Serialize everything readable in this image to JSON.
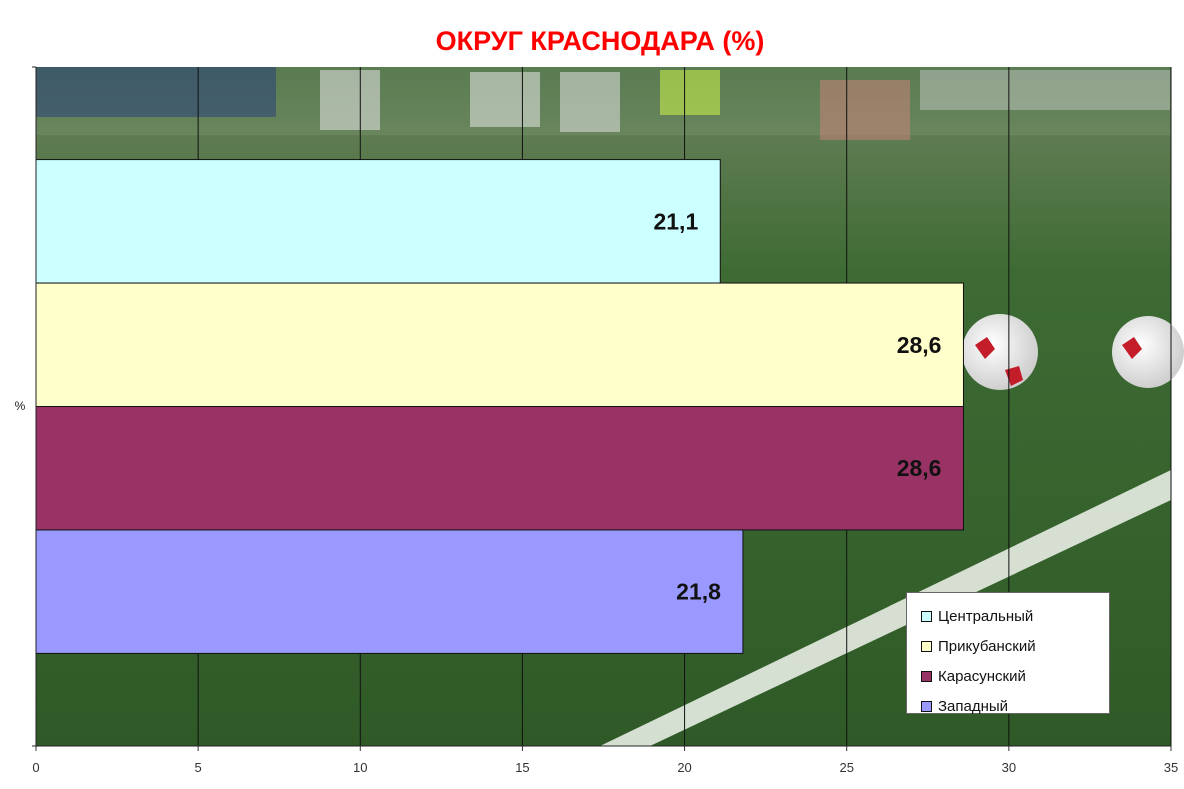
{
  "chart_data": {
    "type": "bar",
    "orientation": "horizontal",
    "title": "ОКРУГ КРАСНОДАРА (%)",
    "ylabel": "%",
    "xlim": [
      0,
      35
    ],
    "xticks": [
      0,
      5,
      10,
      15,
      20,
      25,
      30,
      35
    ],
    "grid": true,
    "legend_position": "bottom-right",
    "background_image": "football pitch with two balls",
    "series": [
      {
        "name": "Центральный",
        "value": 21.1,
        "label": "21,1",
        "color": "#ccffff"
      },
      {
        "name": "Прикубанский",
        "value": 28.6,
        "label": "28,6",
        "color": "#ffffcc"
      },
      {
        "name": "Карасунский",
        "value": 28.6,
        "label": "28,6",
        "color": "#993366"
      },
      {
        "name": "Западный",
        "value": 21.8,
        "label": "21,8",
        "color": "#9999ff"
      }
    ]
  },
  "colors": {
    "title": "#ff0000",
    "grid": "#111111"
  }
}
